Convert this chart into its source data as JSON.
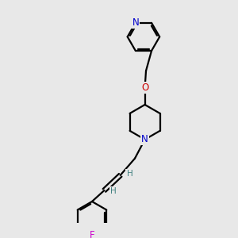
{
  "background_color": "#e8e8e8",
  "atom_colors": {
    "N": "#0000cc",
    "O": "#cc0000",
    "F": "#cc00cc",
    "C": "#000000",
    "H_label": "#408080"
  },
  "bond_color": "#000000",
  "bond_width": 1.6,
  "font_size_atom": 8.5,
  "font_size_H": 7.5
}
